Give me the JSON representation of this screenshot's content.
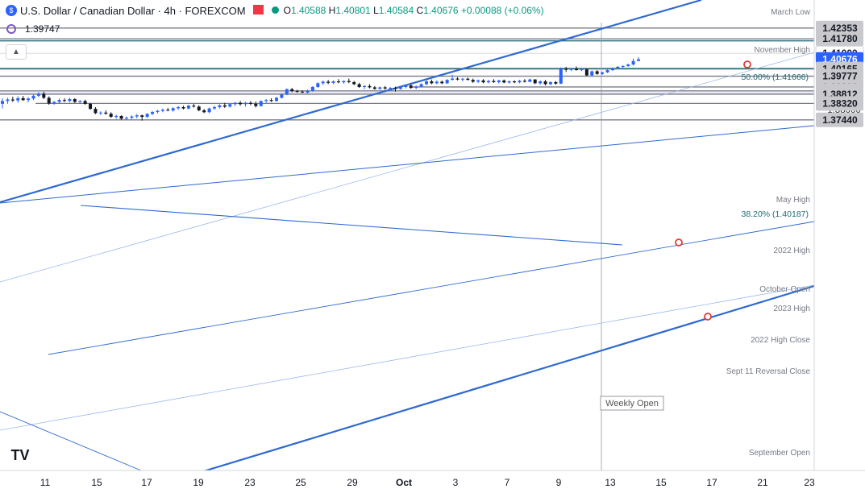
{
  "header": {
    "title": "U.S. Dollar / Canadian Dollar · 4h · FOREXCOM",
    "open_label": "O",
    "open": "1.40588",
    "high_label": "H",
    "high": "1.40801",
    "low_label": "L",
    "low": "1.40584",
    "close_label": "C",
    "close": "1.40676",
    "change": "+0.00088 (+0.06%)",
    "indicator_value": "1.39747"
  },
  "colors": {
    "up": "#2962ff",
    "down": "#131722",
    "channel": "#2f6ad1",
    "level_line": "#787b86",
    "zone_fill": "#e8e6f4",
    "fib_text": "#1f6b74"
  },
  "chart_data": {
    "type": "candlestick",
    "ylim": [
      1.3725,
      1.4245
    ],
    "y_ticks": [
      "1.38000",
      "1.38500",
      "1.39000",
      "1.39500",
      "1.40000",
      "1.40500",
      "1.41000",
      "1.41500",
      "1.42000"
    ],
    "x_ticks": [
      "11",
      "15",
      "17",
      "19",
      "23",
      "25",
      "29",
      "Oct",
      "3",
      "7",
      "9",
      "13",
      "15",
      "17",
      "21",
      "23"
    ],
    "price_labels": [
      {
        "value": 1.42353,
        "text": "1.42353",
        "style": "grey"
      },
      {
        "value": 1.4178,
        "text": "1.41780",
        "style": "grey"
      },
      {
        "value": 1.41,
        "text": "1.41000",
        "style": "white"
      },
      {
        "value": 1.40676,
        "text": "1.40676",
        "style": "blue"
      },
      {
        "value": 1.40165,
        "text": "1.40165",
        "style": "grey"
      },
      {
        "value": 1.39777,
        "text": "1.39777",
        "style": "grey"
      },
      {
        "value": 1.39201,
        "text": "1.39201",
        "style": "grey"
      },
      {
        "value": 1.38994,
        "text": "1.38994",
        "style": "grey"
      },
      {
        "value": 1.38812,
        "text": "1.38812",
        "style": "grey"
      },
      {
        "value": 1.3832,
        "text": "1.38320",
        "style": "grey"
      },
      {
        "value": 1.3744,
        "text": "1.37440",
        "style": "grey"
      }
    ],
    "levels": [
      {
        "label": "March Low",
        "value": 1.42353
      },
      {
        "label": "November High",
        "value": 1.4178
      },
      {
        "label": "May High",
        "value": 1.40165
      },
      {
        "label": "2022 High",
        "value": 1.39777
      },
      {
        "label": "October Open",
        "value": 1.39201
      },
      {
        "label": "2023 High",
        "value": 1.38994
      },
      {
        "label": "2022 High Close",
        "value": 1.38812
      },
      {
        "label": "Sept 11 Reversal Close",
        "value": 1.3832
      },
      {
        "label": "September Open",
        "value": 1.3744
      }
    ],
    "fib_labels": [
      {
        "label": "50.00% (1.41666)",
        "value": 1.41666
      },
      {
        "label": "38.20% (1.40187)",
        "value": 1.40187
      }
    ],
    "weekly_open_label": "Weekly Open",
    "candles": [
      {
        "o": 1.383,
        "h": 1.386,
        "l": 1.3805,
        "c": 1.3845
      },
      {
        "o": 1.3845,
        "h": 1.3862,
        "l": 1.383,
        "c": 1.3853
      },
      {
        "o": 1.3853,
        "h": 1.3868,
        "l": 1.384,
        "c": 1.3848
      },
      {
        "o": 1.3848,
        "h": 1.387,
        "l": 1.3835,
        "c": 1.386
      },
      {
        "o": 1.386,
        "h": 1.3872,
        "l": 1.3845,
        "c": 1.385
      },
      {
        "o": 1.385,
        "h": 1.3865,
        "l": 1.3838,
        "c": 1.3858
      },
      {
        "o": 1.3858,
        "h": 1.388,
        "l": 1.385,
        "c": 1.3873
      },
      {
        "o": 1.3873,
        "h": 1.3892,
        "l": 1.3865,
        "c": 1.3884
      },
      {
        "o": 1.3884,
        "h": 1.3895,
        "l": 1.3855,
        "c": 1.3862
      },
      {
        "o": 1.3862,
        "h": 1.387,
        "l": 1.3825,
        "c": 1.3832
      },
      {
        "o": 1.3832,
        "h": 1.3845,
        "l": 1.3825,
        "c": 1.384
      },
      {
        "o": 1.384,
        "h": 1.3858,
        "l": 1.3832,
        "c": 1.385
      },
      {
        "o": 1.385,
        "h": 1.386,
        "l": 1.384,
        "c": 1.3845
      },
      {
        "o": 1.3845,
        "h": 1.3862,
        "l": 1.3838,
        "c": 1.3855
      },
      {
        "o": 1.3855,
        "h": 1.386,
        "l": 1.3835,
        "c": 1.384
      },
      {
        "o": 1.384,
        "h": 1.385,
        "l": 1.3832,
        "c": 1.3845
      },
      {
        "o": 1.3845,
        "h": 1.3852,
        "l": 1.3825,
        "c": 1.383
      },
      {
        "o": 1.383,
        "h": 1.3835,
        "l": 1.3798,
        "c": 1.3803
      },
      {
        "o": 1.3803,
        "h": 1.3812,
        "l": 1.3775,
        "c": 1.378
      },
      {
        "o": 1.378,
        "h": 1.379,
        "l": 1.377,
        "c": 1.3783
      },
      {
        "o": 1.3783,
        "h": 1.3795,
        "l": 1.3772,
        "c": 1.3777
      },
      {
        "o": 1.3777,
        "h": 1.3785,
        "l": 1.3755,
        "c": 1.376
      },
      {
        "o": 1.376,
        "h": 1.3772,
        "l": 1.375,
        "c": 1.3765
      },
      {
        "o": 1.3765,
        "h": 1.3768,
        "l": 1.3745,
        "c": 1.375
      },
      {
        "o": 1.375,
        "h": 1.3762,
        "l": 1.3744,
        "c": 1.3755
      },
      {
        "o": 1.3755,
        "h": 1.3768,
        "l": 1.3748,
        "c": 1.3762
      },
      {
        "o": 1.3762,
        "h": 1.3775,
        "l": 1.3752,
        "c": 1.3768
      },
      {
        "o": 1.3768,
        "h": 1.3772,
        "l": 1.374,
        "c": 1.376
      },
      {
        "o": 1.376,
        "h": 1.378,
        "l": 1.3755,
        "c": 1.3776
      },
      {
        "o": 1.3776,
        "h": 1.3792,
        "l": 1.377,
        "c": 1.3786
      },
      {
        "o": 1.3786,
        "h": 1.3798,
        "l": 1.3778,
        "c": 1.3792
      },
      {
        "o": 1.3792,
        "h": 1.3805,
        "l": 1.3785,
        "c": 1.3798
      },
      {
        "o": 1.3798,
        "h": 1.3808,
        "l": 1.379,
        "c": 1.3794
      },
      {
        "o": 1.3794,
        "h": 1.3812,
        "l": 1.3788,
        "c": 1.3806
      },
      {
        "o": 1.3806,
        "h": 1.3818,
        "l": 1.3798,
        "c": 1.3812
      },
      {
        "o": 1.3812,
        "h": 1.382,
        "l": 1.38,
        "c": 1.3805
      },
      {
        "o": 1.3805,
        "h": 1.3825,
        "l": 1.38,
        "c": 1.382
      },
      {
        "o": 1.382,
        "h": 1.383,
        "l": 1.381,
        "c": 1.3815
      },
      {
        "o": 1.3815,
        "h": 1.3822,
        "l": 1.379,
        "c": 1.3795
      },
      {
        "o": 1.3795,
        "h": 1.3802,
        "l": 1.378,
        "c": 1.3785
      },
      {
        "o": 1.3785,
        "h": 1.381,
        "l": 1.378,
        "c": 1.3805
      },
      {
        "o": 1.3805,
        "h": 1.382,
        "l": 1.3798,
        "c": 1.3812
      },
      {
        "o": 1.3812,
        "h": 1.3828,
        "l": 1.3805,
        "c": 1.3822
      },
      {
        "o": 1.3822,
        "h": 1.3835,
        "l": 1.3808,
        "c": 1.3815
      },
      {
        "o": 1.3815,
        "h": 1.3832,
        "l": 1.381,
        "c": 1.3828
      },
      {
        "o": 1.3828,
        "h": 1.384,
        "l": 1.3818,
        "c": 1.3835
      },
      {
        "o": 1.3835,
        "h": 1.3845,
        "l": 1.382,
        "c": 1.3828
      },
      {
        "o": 1.3828,
        "h": 1.384,
        "l": 1.3815,
        "c": 1.3835
      },
      {
        "o": 1.3835,
        "h": 1.3845,
        "l": 1.3822,
        "c": 1.383
      },
      {
        "o": 1.383,
        "h": 1.3842,
        "l": 1.381,
        "c": 1.3818
      },
      {
        "o": 1.3818,
        "h": 1.3848,
        "l": 1.3815,
        "c": 1.3845
      },
      {
        "o": 1.3845,
        "h": 1.3855,
        "l": 1.3835,
        "c": 1.385
      },
      {
        "o": 1.385,
        "h": 1.386,
        "l": 1.384,
        "c": 1.3845
      },
      {
        "o": 1.3845,
        "h": 1.3868,
        "l": 1.3842,
        "c": 1.3862
      },
      {
        "o": 1.3862,
        "h": 1.3885,
        "l": 1.3858,
        "c": 1.388
      },
      {
        "o": 1.388,
        "h": 1.3912,
        "l": 1.3876,
        "c": 1.3908
      },
      {
        "o": 1.3908,
        "h": 1.3915,
        "l": 1.3892,
        "c": 1.3898
      },
      {
        "o": 1.3898,
        "h": 1.3905,
        "l": 1.389,
        "c": 1.3895
      },
      {
        "o": 1.3895,
        "h": 1.3902,
        "l": 1.3888,
        "c": 1.389
      },
      {
        "o": 1.389,
        "h": 1.3905,
        "l": 1.3886,
        "c": 1.39
      },
      {
        "o": 1.39,
        "h": 1.3925,
        "l": 1.3895,
        "c": 1.392
      },
      {
        "o": 1.392,
        "h": 1.3945,
        "l": 1.3915,
        "c": 1.394
      },
      {
        "o": 1.394,
        "h": 1.3955,
        "l": 1.393,
        "c": 1.3948
      },
      {
        "o": 1.3948,
        "h": 1.3958,
        "l": 1.3935,
        "c": 1.3942
      },
      {
        "o": 1.3942,
        "h": 1.3955,
        "l": 1.3935,
        "c": 1.395
      },
      {
        "o": 1.395,
        "h": 1.3962,
        "l": 1.394,
        "c": 1.3945
      },
      {
        "o": 1.3945,
        "h": 1.3955,
        "l": 1.3938,
        "c": 1.3952
      },
      {
        "o": 1.3952,
        "h": 1.3965,
        "l": 1.394,
        "c": 1.3946
      },
      {
        "o": 1.3946,
        "h": 1.3952,
        "l": 1.393,
        "c": 1.3935
      },
      {
        "o": 1.3935,
        "h": 1.3942,
        "l": 1.3915,
        "c": 1.392
      },
      {
        "o": 1.392,
        "h": 1.393,
        "l": 1.3908,
        "c": 1.3925
      },
      {
        "o": 1.3925,
        "h": 1.3935,
        "l": 1.3912,
        "c": 1.3918
      },
      {
        "o": 1.3918,
        "h": 1.3925,
        "l": 1.3905,
        "c": 1.391
      },
      {
        "o": 1.391,
        "h": 1.3922,
        "l": 1.3905,
        "c": 1.3918
      },
      {
        "o": 1.3918,
        "h": 1.3925,
        "l": 1.3905,
        "c": 1.3912
      },
      {
        "o": 1.3912,
        "h": 1.392,
        "l": 1.39,
        "c": 1.3915
      },
      {
        "o": 1.3915,
        "h": 1.3922,
        "l": 1.3895,
        "c": 1.391
      },
      {
        "o": 1.391,
        "h": 1.3925,
        "l": 1.3905,
        "c": 1.392
      },
      {
        "o": 1.392,
        "h": 1.3932,
        "l": 1.3912,
        "c": 1.3928
      },
      {
        "o": 1.3928,
        "h": 1.3935,
        "l": 1.391,
        "c": 1.3915
      },
      {
        "o": 1.3915,
        "h": 1.3928,
        "l": 1.3908,
        "c": 1.3922
      },
      {
        "o": 1.3922,
        "h": 1.394,
        "l": 1.3918,
        "c": 1.3935
      },
      {
        "o": 1.3935,
        "h": 1.3955,
        "l": 1.393,
        "c": 1.395
      },
      {
        "o": 1.395,
        "h": 1.396,
        "l": 1.3935,
        "c": 1.394
      },
      {
        "o": 1.394,
        "h": 1.3955,
        "l": 1.3935,
        "c": 1.3948
      },
      {
        "o": 1.3948,
        "h": 1.3955,
        "l": 1.3935,
        "c": 1.394
      },
      {
        "o": 1.394,
        "h": 1.3962,
        "l": 1.3936,
        "c": 1.3958
      },
      {
        "o": 1.3958,
        "h": 1.3985,
        "l": 1.3955,
        "c": 1.3965
      },
      {
        "o": 1.3965,
        "h": 1.3972,
        "l": 1.3955,
        "c": 1.396
      },
      {
        "o": 1.396,
        "h": 1.3968,
        "l": 1.395,
        "c": 1.3964
      },
      {
        "o": 1.3964,
        "h": 1.397,
        "l": 1.3955,
        "c": 1.3958
      },
      {
        "o": 1.3958,
        "h": 1.3965,
        "l": 1.3942,
        "c": 1.3948
      },
      {
        "o": 1.3948,
        "h": 1.396,
        "l": 1.3942,
        "c": 1.3955
      },
      {
        "o": 1.3955,
        "h": 1.3962,
        "l": 1.394,
        "c": 1.3945
      },
      {
        "o": 1.3945,
        "h": 1.3958,
        "l": 1.394,
        "c": 1.3952
      },
      {
        "o": 1.3952,
        "h": 1.3962,
        "l": 1.3942,
        "c": 1.3946
      },
      {
        "o": 1.3946,
        "h": 1.3958,
        "l": 1.3938,
        "c": 1.3955
      },
      {
        "o": 1.3955,
        "h": 1.396,
        "l": 1.394,
        "c": 1.3944
      },
      {
        "o": 1.3944,
        "h": 1.3955,
        "l": 1.3938,
        "c": 1.395
      },
      {
        "o": 1.395,
        "h": 1.3956,
        "l": 1.394,
        "c": 1.3945
      },
      {
        "o": 1.3945,
        "h": 1.3958,
        "l": 1.394,
        "c": 1.3953
      },
      {
        "o": 1.3953,
        "h": 1.3962,
        "l": 1.3944,
        "c": 1.3948
      },
      {
        "o": 1.3948,
        "h": 1.3965,
        "l": 1.3945,
        "c": 1.396
      },
      {
        "o": 1.396,
        "h": 1.3962,
        "l": 1.3935,
        "c": 1.394
      },
      {
        "o": 1.394,
        "h": 1.3955,
        "l": 1.3932,
        "c": 1.395
      },
      {
        "o": 1.395,
        "h": 1.3958,
        "l": 1.3928,
        "c": 1.3935
      },
      {
        "o": 1.3935,
        "h": 1.395,
        "l": 1.393,
        "c": 1.3946
      },
      {
        "o": 1.3946,
        "h": 1.3952,
        "l": 1.3932,
        "c": 1.3938
      },
      {
        "o": 1.3938,
        "h": 1.4025,
        "l": 1.3935,
        "c": 1.4018
      },
      {
        "o": 1.4018,
        "h": 1.4028,
        "l": 1.4,
        "c": 1.4012
      },
      {
        "o": 1.4012,
        "h": 1.4022,
        "l": 1.4005,
        "c": 1.4016
      },
      {
        "o": 1.4016,
        "h": 1.403,
        "l": 1.4008,
        "c": 1.401
      },
      {
        "o": 1.401,
        "h": 1.402,
        "l": 1.4005,
        "c": 1.4014
      },
      {
        "o": 1.4014,
        "h": 1.4018,
        "l": 1.3978,
        "c": 1.3982
      },
      {
        "o": 1.3982,
        "h": 1.4008,
        "l": 1.3978,
        "c": 1.4004
      },
      {
        "o": 1.4004,
        "h": 1.401,
        "l": 1.3985,
        "c": 1.399
      },
      {
        "o": 1.399,
        "h": 1.4002,
        "l": 1.3985,
        "c": 1.3998
      },
      {
        "o": 1.3998,
        "h": 1.4015,
        "l": 1.3995,
        "c": 1.401
      },
      {
        "o": 1.401,
        "h": 1.4025,
        "l": 1.4006,
        "c": 1.4022
      },
      {
        "o": 1.4022,
        "h": 1.4032,
        "l": 1.4016,
        "c": 1.4028
      },
      {
        "o": 1.4028,
        "h": 1.4036,
        "l": 1.402,
        "c": 1.4032
      },
      {
        "o": 1.4032,
        "h": 1.4045,
        "l": 1.4028,
        "c": 1.404
      },
      {
        "o": 1.404,
        "h": 1.4072,
        "l": 1.4035,
        "c": 1.4059
      },
      {
        "o": 1.4059,
        "h": 1.408,
        "l": 1.4058,
        "c": 1.4068
      }
    ]
  }
}
